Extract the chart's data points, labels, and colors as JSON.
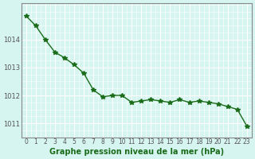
{
  "x": [
    0,
    1,
    2,
    3,
    4,
    5,
    6,
    7,
    8,
    9,
    10,
    11,
    12,
    13,
    14,
    15,
    16,
    17,
    18,
    19,
    20,
    21,
    22,
    23
  ],
  "y": [
    1014.85,
    1014.5,
    1014.0,
    1013.55,
    1013.35,
    1013.1,
    1012.8,
    1012.2,
    1011.95,
    1012.0,
    1012.0,
    1011.75,
    1011.8,
    1011.85,
    1011.8,
    1011.75,
    1011.85,
    1011.75,
    1011.8,
    1011.75,
    1011.7,
    1011.6,
    1011.5,
    1010.9
  ],
  "line_color": "#1a6b1a",
  "marker": "*",
  "marker_color": "#1a6b1a",
  "bg_color": "#d6f5f0",
  "grid_color": "#ffffff",
  "grid_major_color": "#aaaaaa",
  "xlabel": "Graphe pression niveau de la mer (hPa)",
  "xlabel_color": "#1a6b1a",
  "xtick_labels": [
    "0",
    "1",
    "2",
    "3",
    "4",
    "5",
    "6",
    "7",
    "8",
    "9",
    "10",
    "11",
    "12",
    "13",
    "14",
    "15",
    "16",
    "17",
    "18",
    "19",
    "20",
    "21",
    "22",
    "23"
  ],
  "ylim": [
    1010.5,
    1015.3
  ],
  "yticks": [
    1011,
    1012,
    1013,
    1014
  ],
  "tick_color": "#555555",
  "spine_color": "#888888"
}
